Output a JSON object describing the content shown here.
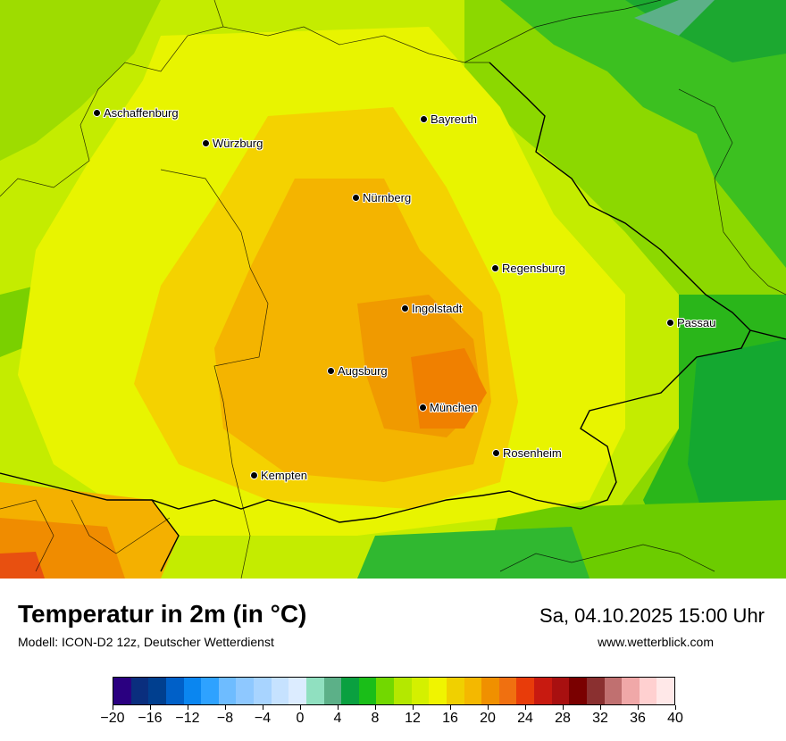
{
  "map": {
    "cities": [
      {
        "name": "Aschaffenburg"
      },
      {
        "name": "Bayreuth"
      },
      {
        "name": "Würzburg"
      },
      {
        "name": "Nürnberg"
      },
      {
        "name": "Regensburg"
      },
      {
        "name": "Ingolstadt"
      },
      {
        "name": "Passau"
      },
      {
        "name": "Augsburg"
      },
      {
        "name": "München"
      },
      {
        "name": "Rosenheim"
      },
      {
        "name": "Kempten"
      }
    ]
  },
  "footer": {
    "title": "Temperatur in 2m (in °C)",
    "subtitle": "Modell: ICON-D2 12z, Deutscher Wetterdienst",
    "datetime": "Sa, 04.10.2025 15:00 Uhr",
    "website": "www.wetterblick.com"
  },
  "legend": {
    "colors": [
      "#2a0080",
      "#0a2e7e",
      "#003f8f",
      "#0060c8",
      "#0a86f0",
      "#2ea2ff",
      "#6ebcff",
      "#8ec8ff",
      "#a8d4ff",
      "#c6e2ff",
      "#dcecff",
      "#90e0c0",
      "#5cb088",
      "#0aa040",
      "#1abe18",
      "#72d800",
      "#b4e800",
      "#d4f000",
      "#f0f400",
      "#f0d000",
      "#f4b800",
      "#f09000",
      "#f07010",
      "#e83c0a",
      "#c81a10",
      "#a81010",
      "#7a0000",
      "#8a3030",
      "#c07070",
      "#f0a8a8",
      "#ffd0d0",
      "#ffe8e8"
    ],
    "tick_labels": [
      "−20",
      "−16",
      "−12",
      "−8",
      "−4",
      "0",
      "4",
      "8",
      "12",
      "16",
      "20",
      "24",
      "28",
      "32",
      "36",
      "40"
    ]
  }
}
